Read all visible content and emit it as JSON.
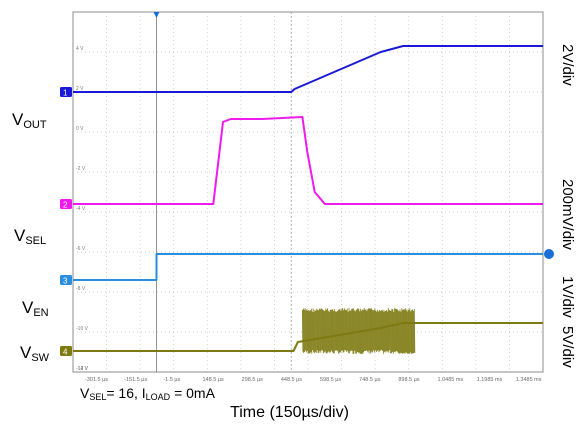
{
  "chart_data": {
    "type": "line",
    "xlabel": "Time (150µs/div)",
    "x_ticks": [
      "-301.5 µs",
      "-151.5 µs",
      "-1.5 µs",
      "148.5 µs",
      "298.5 µs",
      "448.5 µs",
      "598.5 µs",
      "748.5 µs",
      "898.5 µs",
      "1.0485 ms",
      "1.1985 ms",
      "1.3485 ms"
    ],
    "y_ticks": [
      "4 V",
      "2 V",
      "0 V",
      "-2 V",
      "-4 V",
      "-6 V",
      "-8 V",
      "-10 V",
      "-12 V",
      "-14 V"
    ],
    "condition": {
      "vsel": "= 16, ",
      "iload": " = 0mA"
    },
    "volts_per_div_labels": [
      "2V/div",
      "200mV/div",
      "1V/div",
      "5V/div"
    ],
    "channels": [
      {
        "id": "1",
        "name": "V",
        "sub": "OUT",
        "color": "#1a1ad6",
        "points_us": [
          [
            -375,
            0
          ],
          [
            600,
            0
          ],
          [
            615,
            0.15
          ],
          [
            1000,
            2.0
          ],
          [
            1100,
            2.3
          ],
          [
            1725,
            2.3
          ]
        ]
      },
      {
        "id": "2",
        "name": "V",
        "sub": "SEL",
        "color": "#ee1aee",
        "points_us": [
          [
            -375,
            -5.6
          ],
          [
            252,
            -5.6
          ],
          [
            295,
            -1.5
          ],
          [
            330,
            -1.35
          ],
          [
            470,
            -1.35
          ],
          [
            650,
            -1.25
          ],
          [
            672,
            -3.0
          ],
          [
            705,
            -5.0
          ],
          [
            750,
            -5.6
          ],
          [
            1725,
            -5.6
          ]
        ]
      },
      {
        "id": "3",
        "name": "V",
        "sub": "EN",
        "color": "#2a8ee0",
        "points_us": [
          [
            -375,
            -9.4
          ],
          [
            -2,
            -9.4
          ],
          [
            -2,
            -8.1
          ],
          [
            1725,
            -8.1
          ]
        ]
      },
      {
        "id": "4",
        "name": "V",
        "sub": "SW",
        "color": "#7d7a12",
        "points_us": [
          [
            -375,
            -12.95
          ],
          [
            610,
            -12.95
          ],
          [
            630,
            -12.5
          ],
          [
            1000,
            -11.8
          ],
          [
            1100,
            -11.55
          ],
          [
            1725,
            -11.55
          ]
        ],
        "switching_region_us": [
          650,
          1150
        ]
      }
    ]
  },
  "colors": {
    "grid": "#bfbfbf",
    "frame": "#8c8c8c",
    "trigger": "#1a6fd6"
  }
}
